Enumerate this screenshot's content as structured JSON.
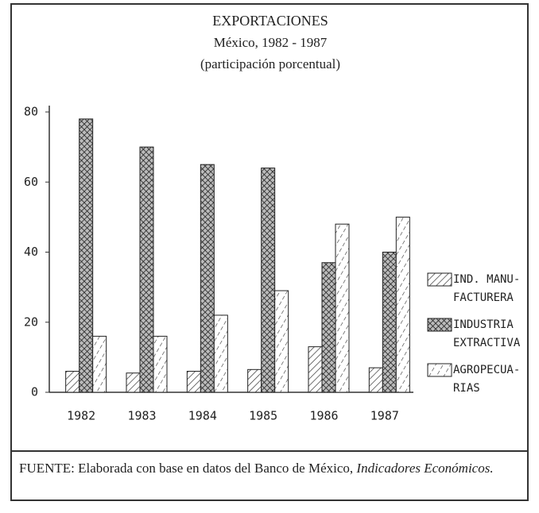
{
  "chart_data": {
    "type": "bar",
    "title": "EXPORTACIONES",
    "subtitle": "México, 1982 - 1987",
    "subtitle2": "(participación porcentual)",
    "categories": [
      "1982",
      "1983",
      "1984",
      "1985",
      "1986",
      "1987"
    ],
    "series": [
      {
        "name": "IND. MANU-\nFACTURERA",
        "pattern": "diagonal",
        "color": "#222",
        "values": [
          6,
          5.5,
          6,
          6.5,
          13,
          7
        ]
      },
      {
        "name": "INDUSTRIA\nEXTRACTIVA",
        "pattern": "crosshatch",
        "color": "#222",
        "values": [
          78,
          70,
          65,
          64,
          37,
          40
        ]
      },
      {
        "name": "AGROPECUA-\nRIAS",
        "pattern": "dashed-diagonal",
        "color": "#222",
        "values": [
          16,
          16,
          22,
          29,
          48,
          50
        ]
      }
    ],
    "ylim": [
      0,
      80
    ],
    "yticks": [
      0,
      20,
      40,
      60,
      80
    ],
    "grid": false,
    "legend": "right"
  },
  "source": {
    "prefix": "FUENTE: Elaborada con base en datos del Banco de México,",
    "italic": "Indicadores Económicos."
  }
}
